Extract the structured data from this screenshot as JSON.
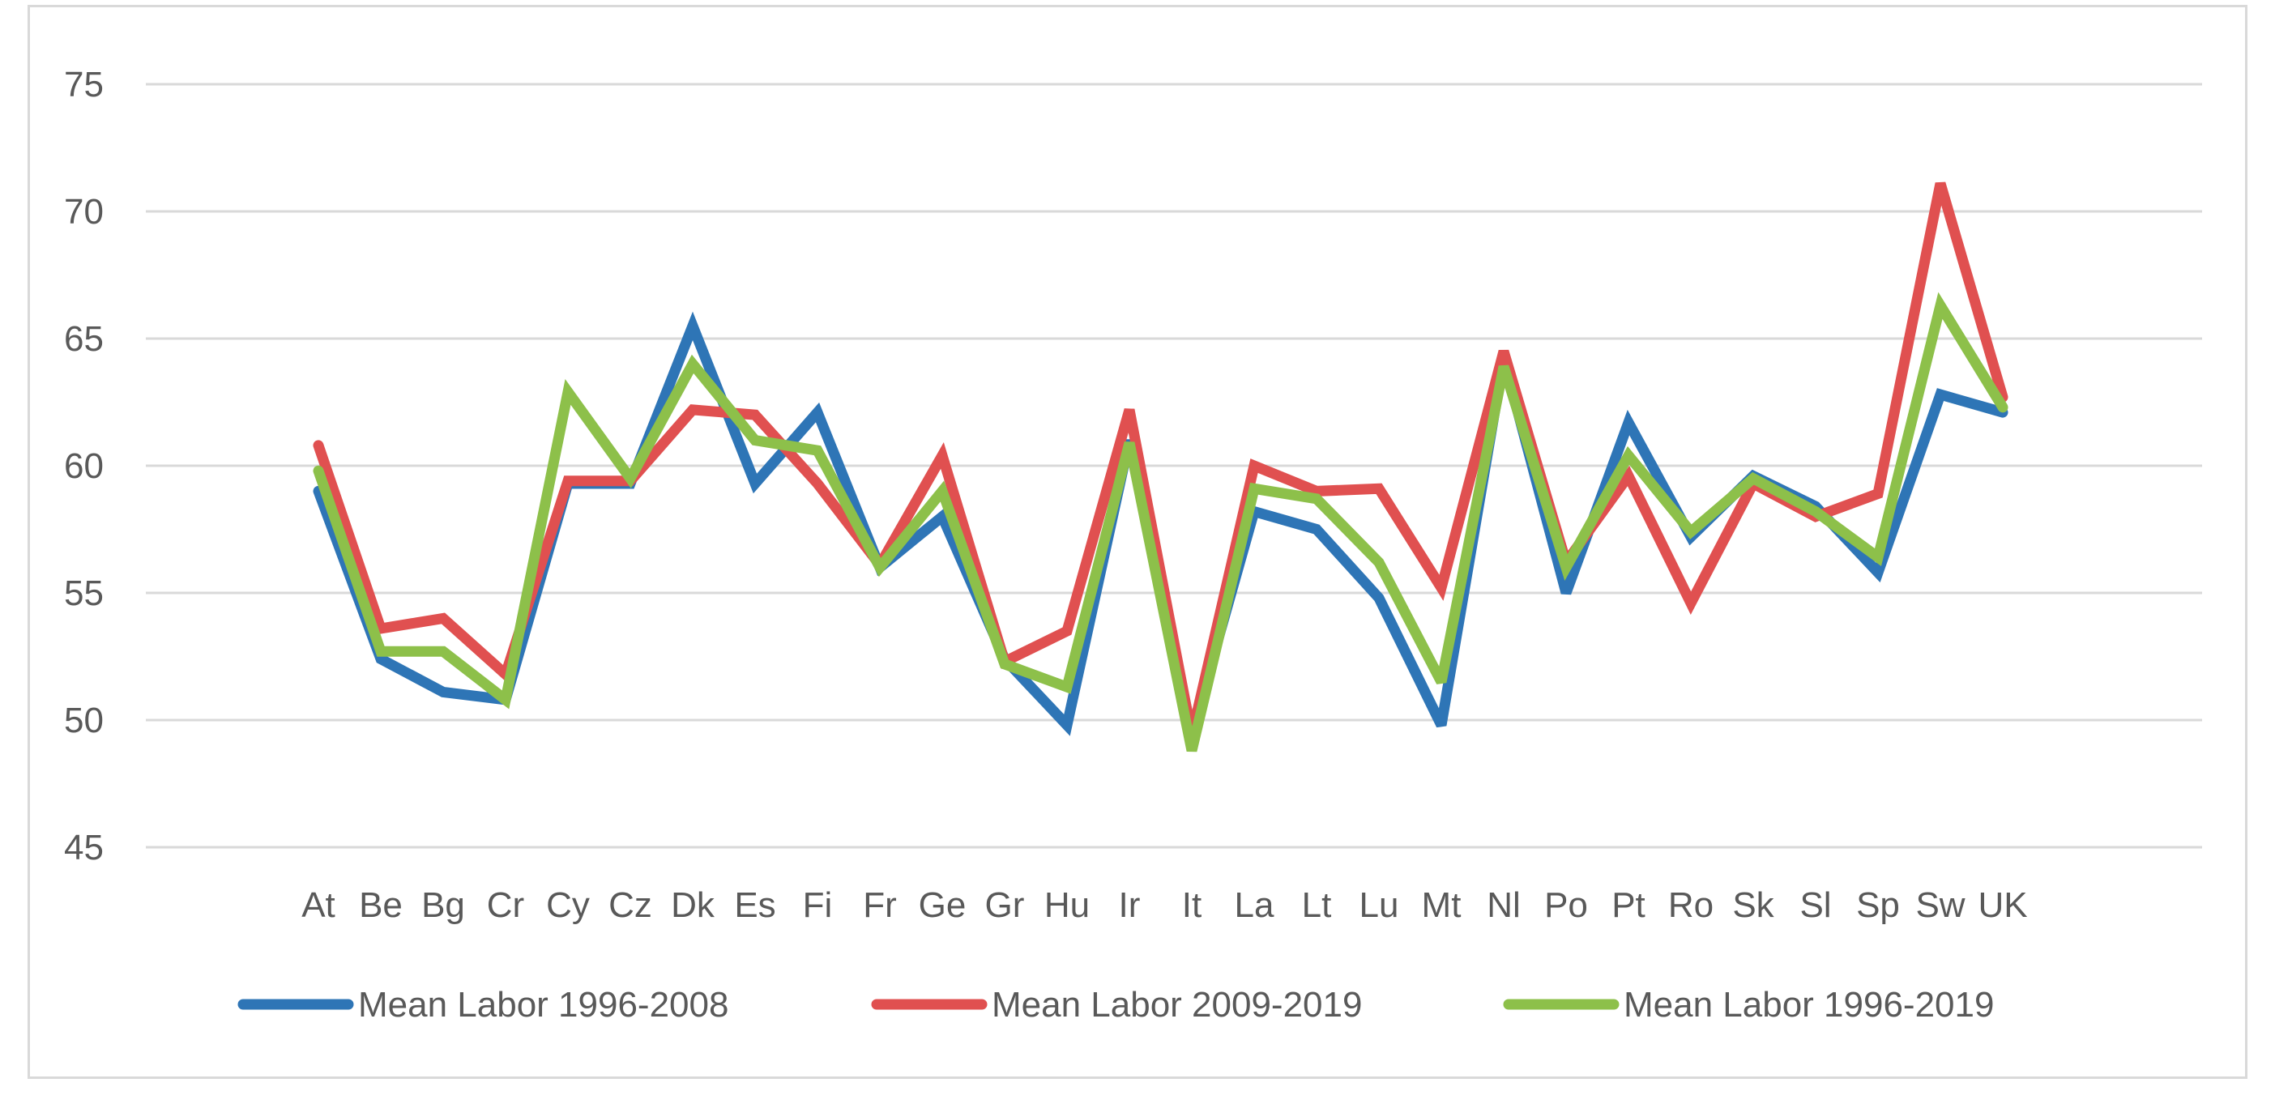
{
  "chart_data": {
    "type": "line",
    "title": "",
    "xlabel": "",
    "ylabel": "",
    "ylim": [
      45,
      75
    ],
    "yticks": [
      45,
      50,
      55,
      60,
      65,
      70,
      75
    ],
    "grid": true,
    "legend_position": "bottom",
    "categories": [
      "At",
      "Be",
      "Bg",
      "Cr",
      "Cy",
      "Cz",
      "Dk",
      "Es",
      "Fi",
      "Fr",
      "Ge",
      "Gr",
      "Hu",
      "Ir",
      "It",
      "La",
      "Lt",
      "Lu",
      "Mt",
      "Nl",
      "Po",
      "Pt",
      "Ro",
      "Sk",
      "Sl",
      "Sp",
      "Sw",
      "UK"
    ],
    "series": [
      {
        "name": "Mean Labor 1996-2008",
        "color": "#2e75b6",
        "values": [
          59.0,
          52.4,
          51.1,
          50.8,
          59.3,
          59.3,
          65.5,
          59.3,
          62.1,
          56.0,
          58.0,
          52.4,
          49.8,
          61.0,
          49.5,
          58.2,
          57.5,
          54.8,
          49.8,
          64.2,
          55.0,
          61.7,
          57.2,
          59.6,
          58.4,
          55.8,
          62.8,
          62.1
        ]
      },
      {
        "name": "Mean Labor 2009-2019",
        "color": "#e05050",
        "values": [
          60.8,
          53.6,
          54.0,
          51.8,
          59.4,
          59.4,
          62.2,
          62.0,
          59.3,
          56.1,
          60.4,
          52.3,
          53.5,
          62.2,
          49.4,
          60.0,
          59.0,
          59.1,
          55.2,
          64.5,
          56.2,
          59.6,
          54.6,
          59.3,
          58.0,
          58.9,
          71.1,
          62.7
        ]
      },
      {
        "name": "Mean Labor 1996-2019",
        "color": "#8dc04a",
        "values": [
          59.8,
          52.7,
          52.7,
          50.8,
          62.9,
          59.5,
          64.0,
          61.0,
          60.6,
          56.0,
          59.0,
          52.2,
          51.3,
          60.9,
          48.8,
          59.1,
          58.7,
          56.2,
          51.5,
          63.9,
          56.0,
          60.4,
          57.4,
          59.5,
          58.2,
          56.4,
          66.3,
          62.3
        ]
      }
    ]
  }
}
